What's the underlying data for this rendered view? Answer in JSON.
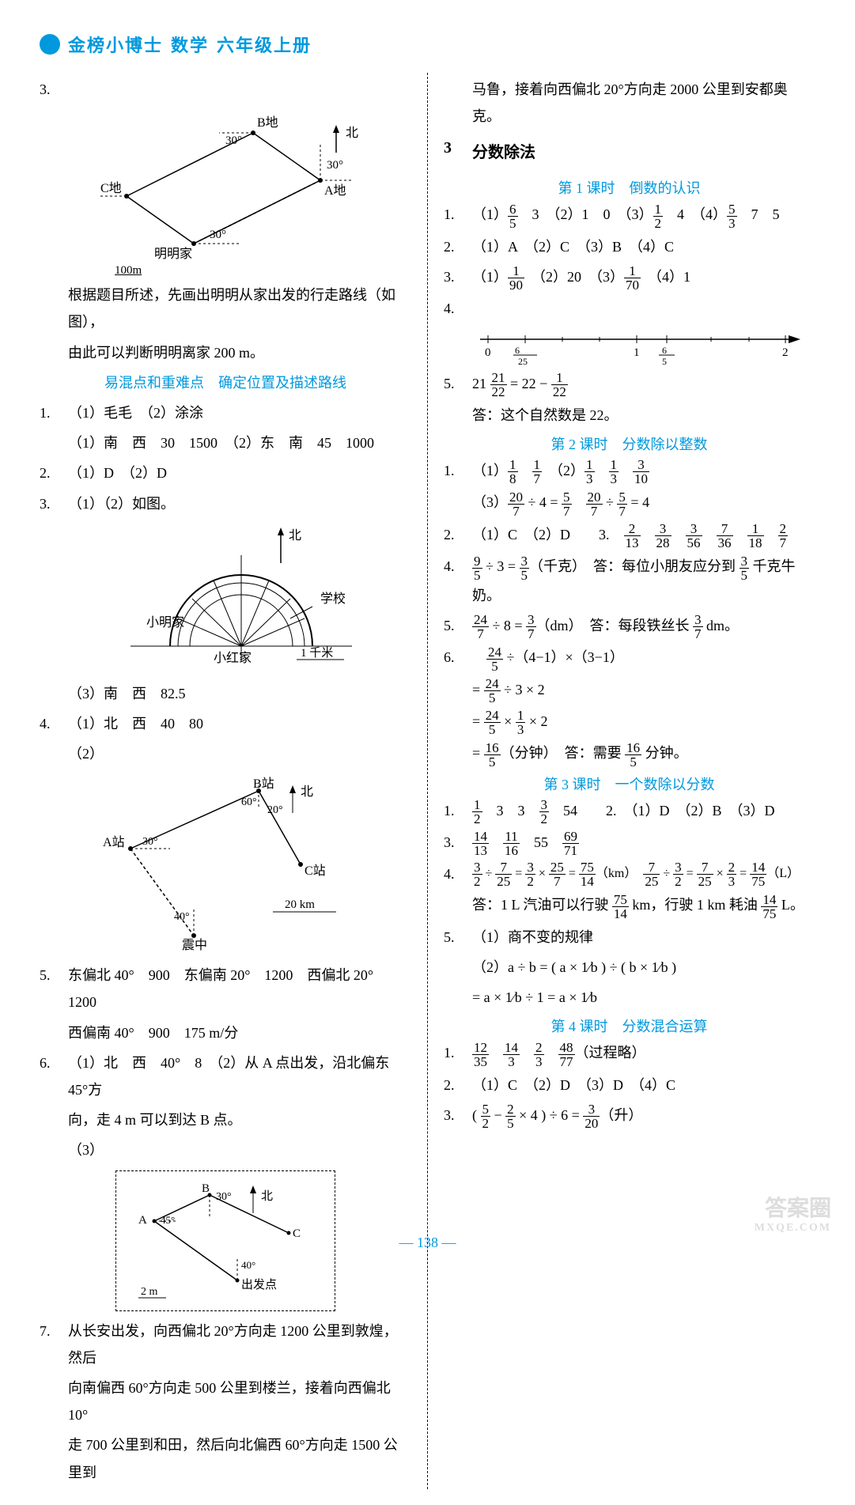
{
  "header": {
    "series": "金榜小博士",
    "subject": "数学",
    "grade": "六年级上册",
    "accent": "#0099dd"
  },
  "page_number": "— 138 —",
  "watermark": {
    "big": "答案圈",
    "small": "MXQE.COM"
  },
  "left": {
    "q3_num": "3.",
    "fig1": {
      "B": "B地",
      "north": "北",
      "a30tl": "30°",
      "a30tr": "30°",
      "C": "C地",
      "A": "A地",
      "a30b": "30°",
      "home": "明明家",
      "scale": "100m",
      "colors": {
        "stroke": "#000000",
        "fill": "#ffffff"
      }
    },
    "p1a": "根据题目所述，先画出明明从家出发的行走路线（如图），",
    "p1b": "由此可以判断明明离家 200 m。",
    "sub1": "易混点和重难点　确定位置及描述路线",
    "q1_num": "1.",
    "q1a": "（1）毛毛　（2）涂涂",
    "q1b": "（1）南　西　30　1500　（2）东　南　45　1000",
    "q2_num": "2.",
    "q2": "（1）D　（2）D",
    "q3b_num": "3.",
    "q3b": "（1）（2）如图。",
    "fig2": {
      "north": "北",
      "school": "学校",
      "xm": "小明家",
      "xh": "小红家",
      "scale": "1 千米",
      "colors": {
        "stroke": "#000000"
      }
    },
    "q3c": "（3）南　西　82.5",
    "q4_num": "4.",
    "q4a": "（1）北　西　40　80",
    "q4b": "（2）",
    "fig3": {
      "B": "B站",
      "north": "北",
      "a60": "60°",
      "a20": "20°",
      "A": "A站",
      "a30": "30°",
      "C": "C站",
      "a40": "40°",
      "epi": "震中",
      "scale": "20 km",
      "colors": {
        "stroke": "#000000"
      }
    },
    "q5_num": "5.",
    "q5a": "东偏北 40°　900　东偏南 20°　1200　西偏北 20°　1200",
    "q5b": "西偏南 40°　900　175 m/分",
    "q6_num": "6.",
    "q6a": "（1）北　西　40°　8　（2）从 A 点出发，沿北偏东 45°方",
    "q6b": "向，走 4 m 可以到达 B 点。",
    "q6c": "（3）",
    "fig4": {
      "B": "B",
      "a30": "30°",
      "north": "北",
      "A": "A",
      "a45": "45°",
      "C": "C",
      "a40": "40°",
      "start": "出发点",
      "scale": "2 m",
      "colors": {
        "stroke": "#000000"
      }
    },
    "q7_num": "7.",
    "q7a": "从长安出发，向西偏北 20°方向走 1200 公里到敦煌，然后",
    "q7b": "向南偏西 60°方向走 500 公里到楼兰，接着向西偏北 10°",
    "q7c": "走 700 公里到和田，然后向北偏西 60°方向走 1500 公里到"
  },
  "right": {
    "cont": "马鲁，接着向西偏北 20°方向走 2000 公里到安都奥克。",
    "sec_num": "3",
    "sec_title": "分数除法",
    "s1_title": "第 1 课时　倒数的认识",
    "s1_1": "（1）⁠6⁄5　3　（2）1　0　（3）⁠1⁄2　4　（4）⁠5⁄3　7　5",
    "s1_2": "（1）A　（2）C　（3）B　（4）C",
    "s1_3": "（1）⁠1⁄90　（2）20　（3）⁠1⁄70　（4）1",
    "s1_4_num": "4.",
    "numberline": {
      "ticks": [
        "0",
        "6⁄25",
        "1",
        "6⁄5",
        "2"
      ],
      "color": "#000000"
    },
    "s1_5a": "21 ⁠21⁄22 = 22 − ⁠1⁄22",
    "s1_5b": "答：这个自然数是 22。",
    "s2_title": "第 2 课时　分数除以整数",
    "s2_1a": "（1）⁠1⁄8　⁠1⁄7　（2）⁠1⁄3　⁠1⁄3　⁠3⁄10",
    "s2_1b": "（3）⁠20⁄7 ÷ 4 = ⁠5⁄7　⁠20⁄7 ÷ ⁠5⁄7 = 4",
    "s2_2": "（1）C　（2）D　　3.　⁠2⁄13　⁠3⁄28　⁠3⁄56　⁠7⁄36　⁠1⁄18　⁠2⁄7",
    "s2_4": "⁠9⁄5 ÷ 3 = ⁠3⁄5（千克）　答：每位小朋友应分到 ⁠3⁄5 千克牛奶。",
    "s2_5": "⁠24⁄7 ÷ 8 = ⁠3⁄7（dm）　答：每段铁丝长 ⁠3⁄7 dm。",
    "s2_6a": "　⁠24⁄5 ÷（4−1）×（3−1）",
    "s2_6b": "= ⁠24⁄5 ÷ 3 × 2",
    "s2_6c": "= ⁠24⁄5 × ⁠1⁄3 × 2",
    "s2_6d": "= ⁠16⁄5（分钟）　答：需要 ⁠16⁄5 分钟。",
    "s3_title": "第 3 课时　一个数除以分数",
    "s3_1": "⁠1⁄2　3　3　⁠3⁄2　54　　2.　（1）D　（2）B　（3）D",
    "s3_3": "⁠14⁄13　⁠11⁄16　55　⁠69⁄71",
    "s3_4a": "⁠3⁄2 ÷ ⁠7⁄25 = ⁠3⁄2 × ⁠25⁄7 = ⁠75⁄14（km）　⁠7⁄25 ÷ ⁠3⁄2 = ⁠7⁄25 × ⁠2⁄3 = ⁠14⁄75（L）",
    "s3_4b": "答：1 L 汽油可以行驶 ⁠75⁄14 km，行驶 1 km 耗油 ⁠14⁄75 L。",
    "s3_5a": "（1）商不变的规律",
    "s3_5b": "（2）a ÷ b = ( a × ⁠1⁄b ) ÷ ( b × ⁠1⁄b )",
    "s3_5c": "= a × ⁠1⁄b ÷ 1 = a × ⁠1⁄b",
    "s4_title": "第 4 课时　分数混合运算",
    "s4_1": "⁠12⁄35　⁠14⁄3　⁠2⁄3　⁠48⁄77（过程略）",
    "s4_2": "（1）C　（2）D　（3）D　（4）C",
    "s4_3": "( ⁠5⁄2 − ⁠2⁄5 × 4 ) ÷ 6 = ⁠3⁄20（升）"
  }
}
